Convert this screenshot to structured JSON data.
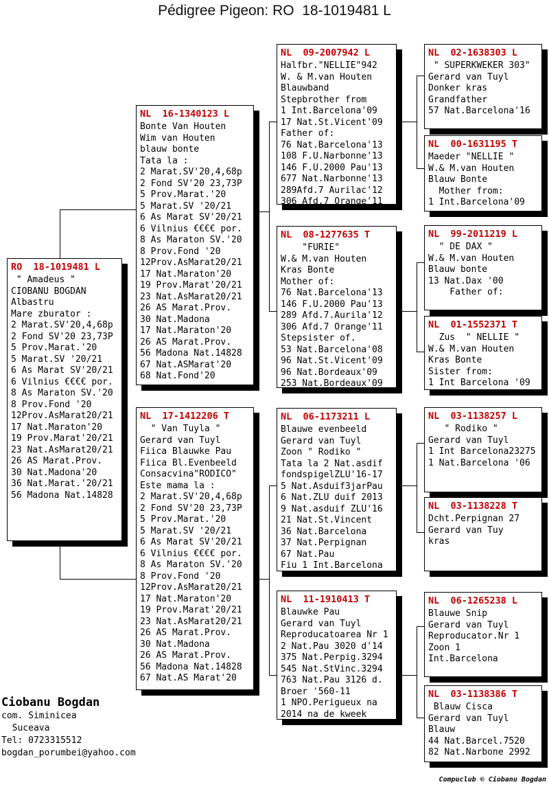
{
  "title": "Pédigree Pigeon: RO  18-1019481 L",
  "colors": {
    "header_red": "#c00000",
    "text": "#000000",
    "background": "#ffffff"
  },
  "boxes": {
    "ro": {
      "header": "RO  18-1019481 L",
      "lines": [
        " \" Amadeus \"",
        "CIOBANU BOGDAN",
        "Albastru",
        "Mare zburator :",
        "2 Marat.SV'20,4,68p",
        "2 Fond SV'20 23,73P",
        "5 Prov.Marat.'20",
        "5 Marat.SV '20/21",
        "6 As Marat SV'20/21",
        "6 Vilnius €€€€ por.",
        "8 As Maraton SV.'20",
        "8 Prov.Fond '20",
        "12Prov.AsMarat20/21",
        "17 Nat.Maraton'20",
        "19 Prov.Marat'20/21",
        "23 Nat.AsMarat20/21",
        "26 AS Marat.Prov.",
        "30 Nat.Madona'20",
        "36 Nat.Marat.'20/21",
        "56 Madona Nat.14828"
      ]
    },
    "nl16": {
      "header": "NL  16-1340123 L",
      "lines": [
        "Bonte Van Houten",
        "Wim van Houten",
        "blauw bonte",
        "Tata la :",
        "2 Marat.SV'20,4,68p",
        "2 Fond SV'20 23,73P",
        "5 Prov.Marat.'20",
        "5 Marat.SV '20/21",
        "6 As Marat SV'20/21",
        "6 Vilnius €€€€ por.",
        "8 As Maraton SV.'20",
        "8 Prov.Fond '20",
        "12Prov.AsMarat20/21",
        "17 Nat.Maraton'20",
        "19 Prov.Marat'20/21",
        "23 Nat.AsMarat20/21",
        "26 AS Marat.Prov.",
        "30 Nat.Madona",
        "17 Nat.Maraton'20",
        "26 AS Marat.Prov.",
        "56 Madona Nat.14828",
        "67 Nat.ASMarat'20",
        "68 Nat.Fond'20"
      ]
    },
    "nl17": {
      "header": "NL  17-1412206 T",
      "lines": [
        "  \" Van Tuyla \"",
        "Gerard van Tuyl",
        "Fiica Blauwke Pau",
        "Fiica Bl.Evenbeeld",
        "Consacvina\"RODICO\"",
        "Este mama la :",
        "2 Marat.SV'20,4,68p",
        "2 Fond SV'20 23,73P",
        "5 Prov.Marat.'20",
        "5 Marat.SV '20/21",
        "6 As Marat SV'20/21",
        "6 Vilnius €€€€ por.",
        "8 As Maraton SV.'20",
        "8 Prov.Fond '20",
        "12Prov.AsMarat20/21",
        "17 Nat.Maraton'20",
        "19 Prov.Marat'20/21",
        "23 Nat.AsMarat20/21",
        "26 AS Marat.Prov.",
        "30 Nat.Madona",
        "26 AS Marat.Prov.",
        "56 Madona Nat.14828",
        "67 Nat.AS Marat'20"
      ]
    },
    "nl09": {
      "header": "NL  09-2007942 L",
      "lines": [
        "Halfbr.\"NELLIE\"942",
        "W. & M.van Houten",
        "Blauwband",
        "Stepbrother from",
        "1 Int.Barcelona'09",
        "17 Nat.St.Vicent'09",
        "Father of:",
        "76 Nat.Barcelona'13",
        "108 F.U.Narbonne'13",
        "146 F.U.2000 Pau'13",
        "677 Nat.Narbonne'13",
        "289Afd.7 Aurilac'12",
        "306 Afd.7 Orange'11"
      ]
    },
    "nl08": {
      "header": "NL  08-1277635 T",
      "lines": [
        "    \"FURIE\"",
        "W.& M.van Houten",
        "Kras Bonte",
        "Mother of:",
        "76 Nat.Barcelona'13",
        "146 F.U.2000 Pau'13",
        "289 Afd.7.Aurila'12",
        "306 Afd.7 Orange'11",
        "Stepsister of.",
        "53 Nat.Barcelona'08",
        "96 Nat.St.Vicent'09",
        "96 Nat.Bordeaux'09",
        "253 Nat.Bordeaux'09"
      ]
    },
    "nl06": {
      "header": "NL  06-1173211 L",
      "lines": [
        "Blauwe evenbeeld",
        "Gerard van Tuyl",
        "Zoon \" Rodiko \"",
        "Tata la 2 Nat.asdif",
        "fondspigelZLU'16-17",
        "5 Nat.Asduif3jarPau",
        "6 Nat.ZLU duif 2013",
        "9 Nat.asduif ZLU'16",
        "21 Nat.St.Vincent",
        "36 Nat.Barcelona",
        "37 Nat.Perpignan",
        "67 Nat.Pau",
        "Fiu 1 Int.Barcelona"
      ]
    },
    "nl11": {
      "header": "NL  11-1910413 T",
      "lines": [
        "Blauwke Pau",
        "Gerard van Tuyl",
        "Reproducatoarea Nr 1",
        "2 Nat.Pau 3020 d'14",
        "375 Nat.Perpig.3294",
        "545 Nat.StVinc.3294",
        "763 Nat.Pau 3126 d.",
        "Broer '560-11",
        "1 NPO.Perigueux na",
        "2014 na de kweek"
      ]
    },
    "nl02": {
      "header": "NL  02-1638303 L",
      "lines": [
        " \" SUPERKWEKER 303\"",
        "Gerard van Tuyl",
        "Donker kras",
        "Grandfather",
        "57 Nat.Barcelona'16"
      ]
    },
    "nl00": {
      "header": "NL  00-1631195 T",
      "lines": [
        "Maeder \"NELLIE \"",
        "W.& M.van Houten",
        "Blauw Bonte",
        "  Mother from:",
        "1 Int.Barcelona'09"
      ]
    },
    "nl99": {
      "header": "NL  99-2011219 L",
      "lines": [
        "  \" DE DAX \"",
        "W.& M.van Houten",
        "Blauw bonte",
        "13 Nat.Dax '00",
        "    Father of:"
      ]
    },
    "nl01": {
      "header": "NL  01-1552371 T",
      "lines": [
        "  Zus  \" NELLIE \"",
        "W.& M.van Houten",
        "Kras Bonte",
        "Sister from:",
        "1 Int Barcelona '09"
      ]
    },
    "nl03a": {
      "header": "NL  03-1138257 L",
      "lines": [
        "   \" Rodiko \"",
        "Gerard van Tuyl",
        "1 Int Barcelona23275",
        "1 Nat.Barcelona '06"
      ]
    },
    "nl03b": {
      "header": "NL  03-1138228 T",
      "lines": [
        "Dcht.Perpignan 27",
        "Gerard van Tuy",
        "kras"
      ]
    },
    "nl06b": {
      "header": "NL  06-1265238 L",
      "lines": [
        "Blauwe Snip",
        "Gerard van Tuyl",
        "Reproducator.Nr 1",
        "Zoon 1",
        "Int.Barcelona"
      ]
    },
    "nl03c": {
      "header": "NL  03-1138386 T",
      "lines": [
        " Blauw Cisca",
        "Gerard van Tuyl",
        "Blauw",
        "44 Nat.Barcel.7520",
        "82 Nat.Narbone 2992"
      ]
    }
  },
  "contact": {
    "name": "Ciobanu Bogdan",
    "address1": "com. Siminicea",
    "address2": "  Suceava",
    "phone": "Tel: 0723315512",
    "email": "bogdan_porumbei@yahoo.com"
  },
  "credit": "Compuclub © Ciobanu Bogdan"
}
